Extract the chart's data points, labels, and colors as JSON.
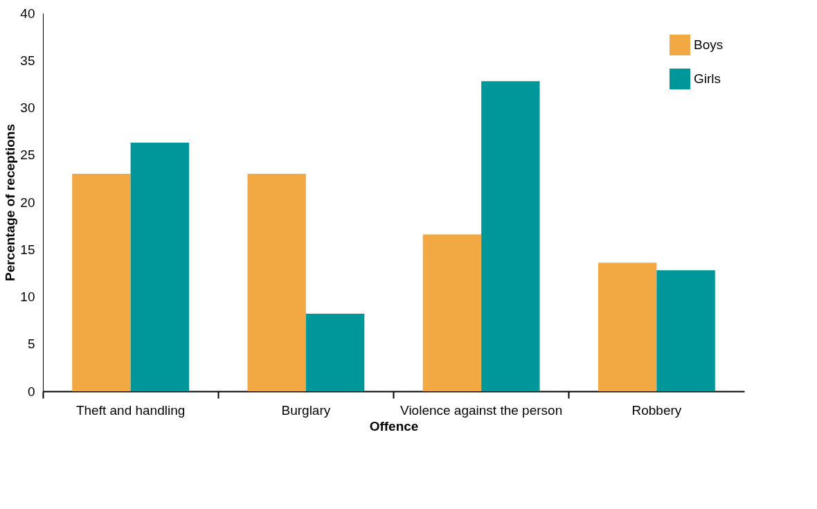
{
  "chart_data": {
    "type": "bar",
    "xlabel": "Offence",
    "ylabel": "Percentage of receptions",
    "categories": [
      "Theft and handling",
      "Burglary",
      "Violence against the person",
      "Robbery"
    ],
    "series": [
      {
        "name": "Boys",
        "color": "#f2a944",
        "values": [
          23.0,
          23.0,
          16.6,
          13.6
        ]
      },
      {
        "name": "Girls",
        "color": "#00979a",
        "values": [
          26.3,
          8.2,
          32.8,
          12.8
        ]
      }
    ],
    "ylim": [
      0,
      40
    ],
    "yticks": [
      0,
      5,
      10,
      15,
      20,
      25,
      30,
      35,
      40
    ],
    "grid": false,
    "legend": "top right"
  }
}
